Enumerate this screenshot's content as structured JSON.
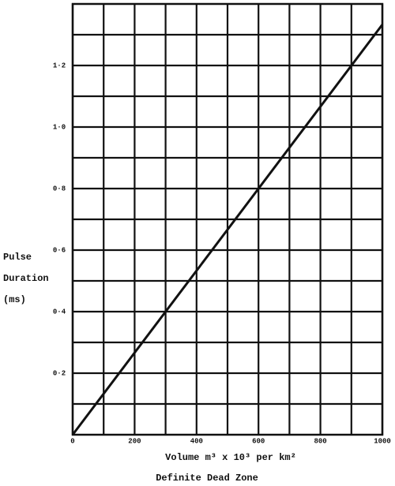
{
  "chart_data": {
    "type": "line",
    "title": "Definite Dead Zone",
    "xlabel": "Volume m³ x 10³ per km²",
    "ylabel_lines": [
      "Pulse",
      "Duration",
      "(ms)"
    ],
    "x": [
      0,
      1000
    ],
    "values": [
      0,
      1.333
    ],
    "color": "#111111",
    "xlim": [
      0,
      1000
    ],
    "ylim": [
      0,
      1.4
    ],
    "xticks": [
      0,
      200,
      400,
      600,
      800,
      1000
    ],
    "xminor": [
      100,
      300,
      500,
      700,
      900
    ],
    "yticks": [
      {
        "value": 0.2,
        "label": "0·2"
      },
      {
        "value": 0.4,
        "label": "0·4"
      },
      {
        "value": 0.6,
        "label": "0·6"
      },
      {
        "value": 0.8,
        "label": "0·8"
      },
      {
        "value": 1.0,
        "label": "1·0"
      },
      {
        "value": 1.2,
        "label": "1·2"
      }
    ],
    "yminor": [
      0.1,
      0.3,
      0.5,
      0.7,
      0.9,
      1.1,
      1.3
    ],
    "grid": true
  }
}
